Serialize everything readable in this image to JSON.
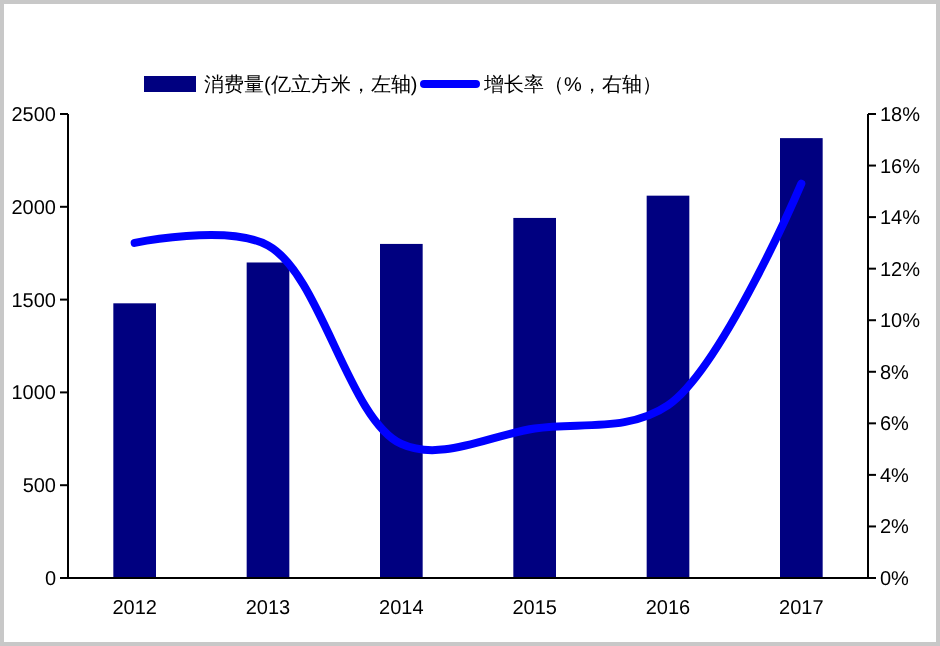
{
  "chart_data": {
    "type": "bar",
    "categories": [
      "2012",
      "2013",
      "2014",
      "2015",
      "2016",
      "2017"
    ],
    "series": [
      {
        "name": "消费量(亿立方米，左轴)",
        "color": "#000080",
        "values": [
          1480,
          1700,
          1800,
          1940,
          2060,
          2370
        ]
      },
      {
        "name": "增长率（%，右轴）",
        "type": "line",
        "axis": "y2",
        "color": "#0000ff",
        "values": [
          13.0,
          12.9,
          5.2,
          5.8,
          6.7,
          15.3
        ]
      }
    ],
    "ylim": [
      0,
      2500
    ],
    "yticks": [
      0,
      500,
      1000,
      1500,
      2000,
      2500
    ],
    "y2lim": [
      0,
      18
    ],
    "y2ticks": [
      {
        "value": 0,
        "label": "0%"
      },
      {
        "value": 2,
        "label": "2%"
      },
      {
        "value": 4,
        "label": "4%"
      },
      {
        "value": 6,
        "label": "6%"
      },
      {
        "value": 8,
        "label": "8%"
      },
      {
        "value": 10,
        "label": "10%"
      },
      {
        "value": 12,
        "label": "12%"
      },
      {
        "value": 14,
        "label": "14%"
      },
      {
        "value": 16,
        "label": "16%"
      },
      {
        "value": 18,
        "label": "18%"
      }
    ],
    "legend": "top",
    "grid": false
  }
}
